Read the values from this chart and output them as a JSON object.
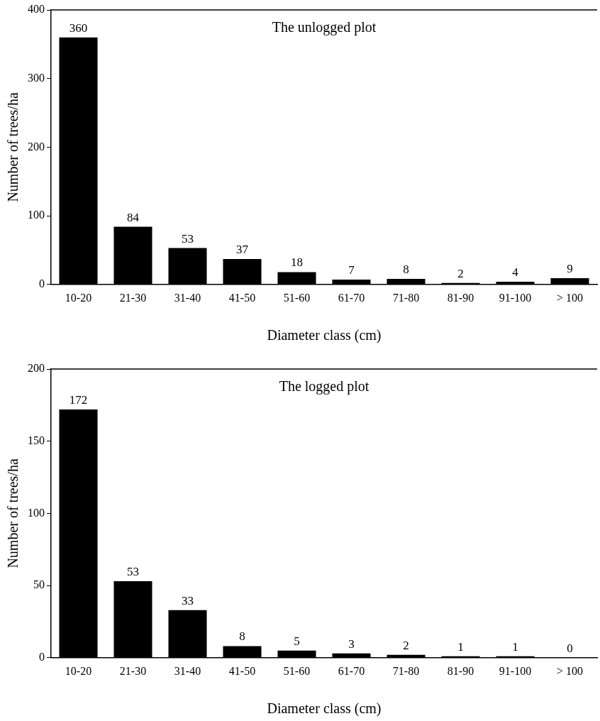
{
  "chart_data": [
    {
      "type": "bar",
      "title": "The unlogged plot",
      "xlabel": "Diameter class (cm)",
      "ylabel": "Number of trees/ha",
      "categories": [
        "10-20",
        "21-30",
        "31-40",
        "41-50",
        "51-60",
        "61-70",
        "71-80",
        "81-90",
        "91-100",
        "> 100"
      ],
      "values": [
        360,
        84,
        53,
        37,
        18,
        7,
        8,
        2,
        4,
        9
      ],
      "color": "#000000",
      "ylim": [
        0,
        400
      ],
      "yticks": [
        0,
        100,
        200,
        300,
        400
      ],
      "grid": false,
      "legend": false,
      "data_labels": true
    },
    {
      "type": "bar",
      "title": "The logged plot",
      "xlabel": "Diameter class (cm)",
      "ylabel": "Number of trees/ha",
      "categories": [
        "10-20",
        "21-30",
        "31-40",
        "41-50",
        "51-60",
        "61-70",
        "71-80",
        "81-90",
        "91-100",
        "> 100"
      ],
      "values": [
        172,
        53,
        33,
        8,
        5,
        3,
        2,
        1,
        1,
        0
      ],
      "color": "#000000",
      "ylim": [
        0,
        200
      ],
      "yticks": [
        0,
        50,
        100,
        150,
        200
      ],
      "grid": false,
      "legend": false,
      "data_labels": true
    }
  ]
}
